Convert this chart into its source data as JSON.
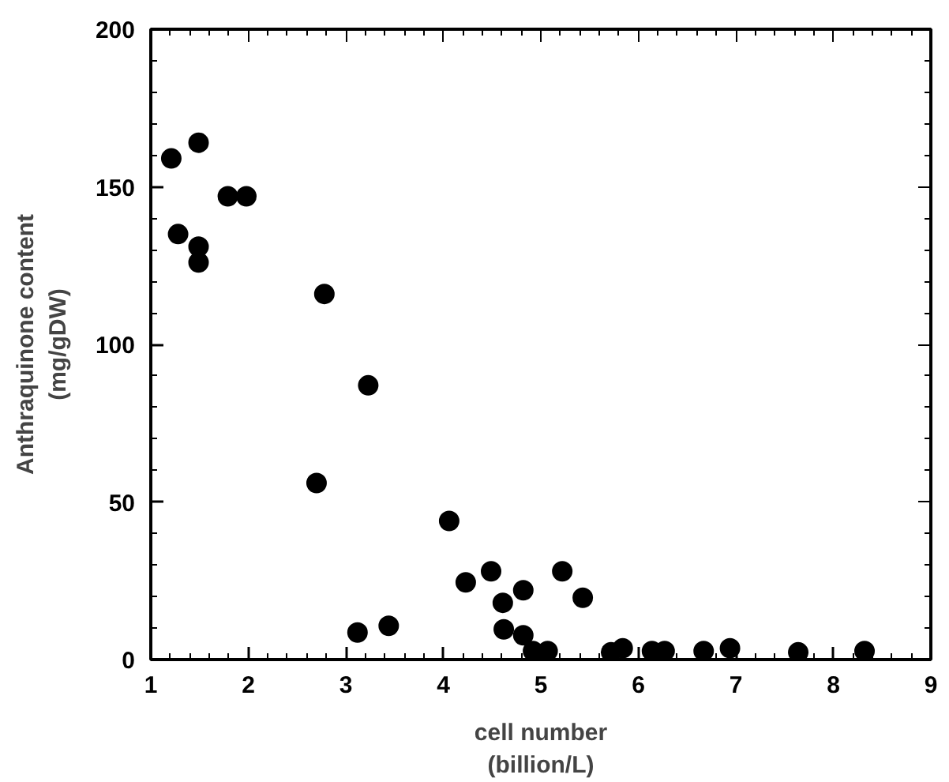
{
  "chart_data": {
    "type": "scatter",
    "xlabel": "cell number\n(billion/L)",
    "ylabel": "Anthraquinone content\n(mg/gDW)",
    "x": [
      1.21,
      1.49,
      1.28,
      1.49,
      1.49,
      1.79,
      1.98,
      2.78,
      3.23,
      2.7,
      4.06,
      3.12,
      3.44,
      4.23,
      4.49,
      4.61,
      4.62,
      4.82,
      4.82,
      4.92,
      5.07,
      5.22,
      5.43,
      5.72,
      5.84,
      6.14,
      6.27,
      6.67,
      6.94,
      7.64,
      8.32
    ],
    "values": [
      159,
      164,
      135,
      131,
      126,
      147,
      147,
      116,
      87,
      56,
      44,
      8.6,
      10.7,
      24.5,
      28,
      18,
      9.6,
      22,
      7.7,
      2.7,
      2.7,
      28,
      19.6,
      2.3,
      3.6,
      2.7,
      2.7,
      2.7,
      3.6,
      2.3,
      2.7
    ],
    "color": "#000000",
    "marker": "circle",
    "grid": false,
    "xlim": [
      1,
      9
    ],
    "ylim": [
      0,
      200
    ],
    "xticks": [
      1,
      2,
      3,
      4,
      5,
      6,
      7,
      8,
      9
    ],
    "yticks": [
      0,
      50,
      100,
      150,
      200
    ]
  }
}
